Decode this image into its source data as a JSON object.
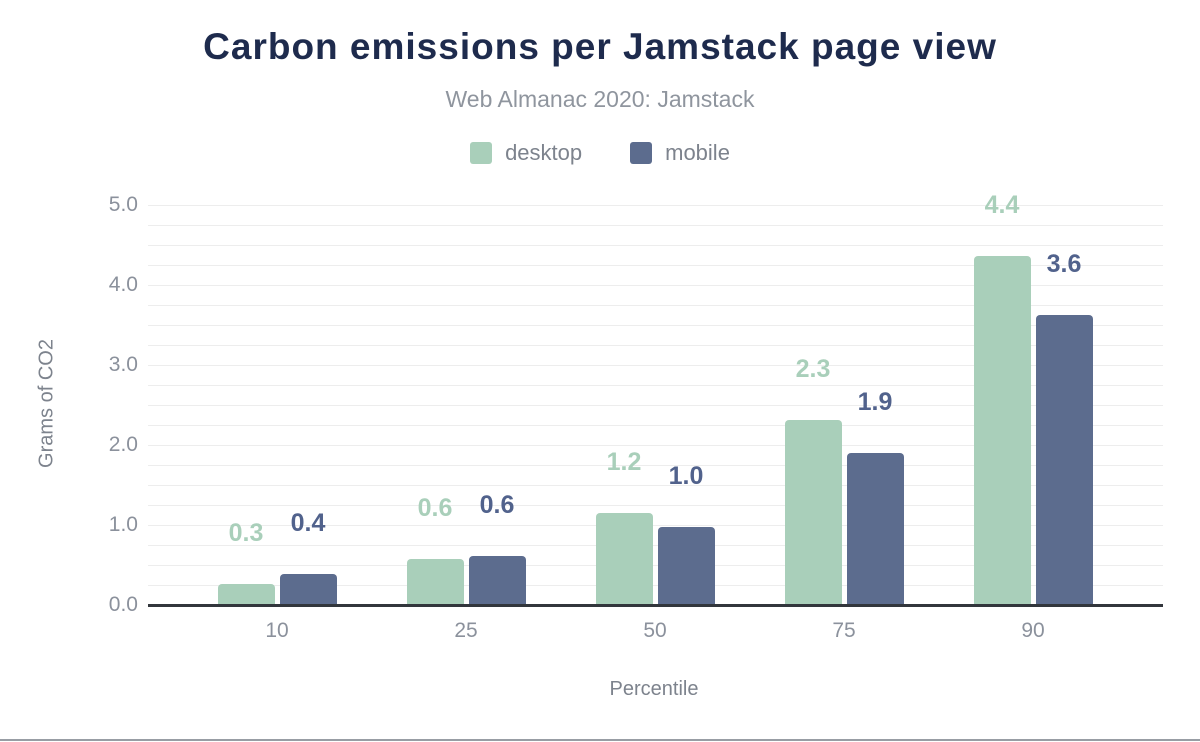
{
  "colors": {
    "title": "#1e2b4d",
    "subtitle": "#8f959e",
    "axis_text": "#7d838d",
    "tick_text": "#8b919c",
    "grid": "#ededed",
    "baseline": "#32363c",
    "bottom_border": "#989da4",
    "background": "#ffffff",
    "desktop": "#a9cfba",
    "mobile": "#5c6c8e",
    "desktop_label": "#a9cfba",
    "mobile_label": "#51628c"
  },
  "legend": [
    {
      "name": "desktop",
      "label": "desktop",
      "color": "#a9cfba"
    },
    {
      "name": "mobile",
      "label": "mobile",
      "color": "#5c6c8e"
    }
  ],
  "chart_data": {
    "type": "bar",
    "title": "Carbon emissions per Jamstack page view",
    "subtitle": "Web Almanac 2020: Jamstack",
    "categories": [
      "10",
      "25",
      "50",
      "75",
      "90"
    ],
    "series": [
      {
        "name": "desktop",
        "color": "#a9cfba",
        "label_color": "#a9cfba",
        "values": [
          0.26,
          0.57,
          1.15,
          2.31,
          4.36
        ],
        "data_labels": [
          "0.3",
          "0.6",
          "1.2",
          "2.3",
          "4.4"
        ]
      },
      {
        "name": "mobile",
        "color": "#5c6c8e",
        "label_color": "#51628c",
        "values": [
          0.39,
          0.61,
          0.97,
          1.9,
          3.62
        ],
        "data_labels": [
          "0.4",
          "0.6",
          "1.0",
          "1.9",
          "3.6"
        ]
      }
    ],
    "xlabel": "Percentile",
    "ylabel": "Grams of CO2",
    "ylim": [
      0,
      5
    ],
    "yticks": [
      "0.0",
      "1.0",
      "2.0",
      "3.0",
      "4.0",
      "5.0"
    ],
    "grid_step": 0.25,
    "grid": true,
    "legend_position": "top"
  }
}
